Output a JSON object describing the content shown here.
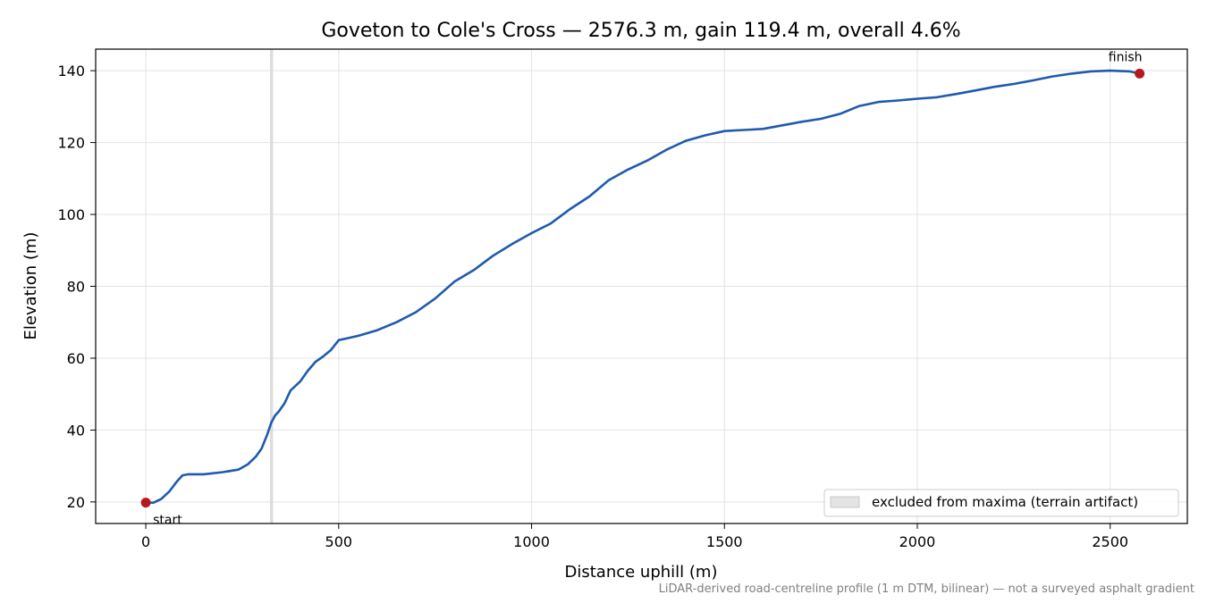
{
  "chart_data": {
    "type": "line",
    "title": "Goveton to Cole's Cross — 2576.3 m, gain 119.4 m, overall 4.6%",
    "xlabel": "Distance uphill (m)",
    "ylabel": "Elevation (m)",
    "xlim": [
      -130,
      2700
    ],
    "ylim": [
      14,
      146
    ],
    "x_ticks": [
      0,
      500,
      1000,
      1500,
      2000,
      2500
    ],
    "y_ticks": [
      20,
      40,
      60,
      80,
      100,
      120,
      140
    ],
    "grid": true,
    "legend_position": "lower right",
    "series": [
      {
        "color": "#1f5aad",
        "points": [
          [
            0,
            19.8
          ],
          [
            20,
            19.8
          ],
          [
            40,
            20.8
          ],
          [
            60,
            22.8
          ],
          [
            80,
            25.6
          ],
          [
            95,
            27.4
          ],
          [
            110,
            27.7
          ],
          [
            150,
            27.7
          ],
          [
            200,
            28.3
          ],
          [
            240,
            29.0
          ],
          [
            265,
            30.5
          ],
          [
            285,
            32.6
          ],
          [
            300,
            34.8
          ],
          [
            315,
            38.8
          ],
          [
            325,
            42.0
          ],
          [
            335,
            44.0
          ],
          [
            345,
            45.2
          ],
          [
            360,
            47.5
          ],
          [
            375,
            51.0
          ],
          [
            400,
            53.5
          ],
          [
            420,
            56.5
          ],
          [
            440,
            59.0
          ],
          [
            460,
            60.5
          ],
          [
            480,
            62.3
          ],
          [
            500,
            65.0
          ],
          [
            550,
            66.2
          ],
          [
            600,
            67.8
          ],
          [
            650,
            70.0
          ],
          [
            700,
            72.8
          ],
          [
            750,
            76.6
          ],
          [
            800,
            81.3
          ],
          [
            850,
            84.5
          ],
          [
            900,
            88.5
          ],
          [
            950,
            91.8
          ],
          [
            1000,
            94.8
          ],
          [
            1050,
            97.5
          ],
          [
            1100,
            101.5
          ],
          [
            1150,
            105.0
          ],
          [
            1200,
            109.5
          ],
          [
            1250,
            112.5
          ],
          [
            1300,
            115.0
          ],
          [
            1350,
            118.0
          ],
          [
            1400,
            120.5
          ],
          [
            1450,
            122.0
          ],
          [
            1500,
            123.2
          ],
          [
            1550,
            123.5
          ],
          [
            1600,
            123.8
          ],
          [
            1650,
            124.8
          ],
          [
            1700,
            125.8
          ],
          [
            1750,
            126.6
          ],
          [
            1800,
            128.0
          ],
          [
            1850,
            130.2
          ],
          [
            1900,
            131.3
          ],
          [
            1950,
            131.7
          ],
          [
            2000,
            132.2
          ],
          [
            2050,
            132.6
          ],
          [
            2100,
            133.5
          ],
          [
            2150,
            134.5
          ],
          [
            2200,
            135.5
          ],
          [
            2250,
            136.3
          ],
          [
            2300,
            137.3
          ],
          [
            2350,
            138.4
          ],
          [
            2400,
            139.2
          ],
          [
            2450,
            139.8
          ],
          [
            2500,
            140.0
          ],
          [
            2550,
            139.8
          ],
          [
            2576.3,
            139.2
          ]
        ]
      }
    ],
    "markers": [
      {
        "x": 0,
        "y": 19.8,
        "label": "start",
        "color": "#b7171f"
      },
      {
        "x": 2576.3,
        "y": 139.2,
        "label": "finish",
        "color": "#b7171f"
      }
    ],
    "excluded_band": {
      "x_from": 322,
      "x_to": 330,
      "label": "excluded from maxima (terrain artifact)",
      "color": "#d9d9d9"
    }
  },
  "footnote": "LiDAR-derived road-centreline profile (1 m DTM, bilinear) — not a surveyed asphalt gradient"
}
